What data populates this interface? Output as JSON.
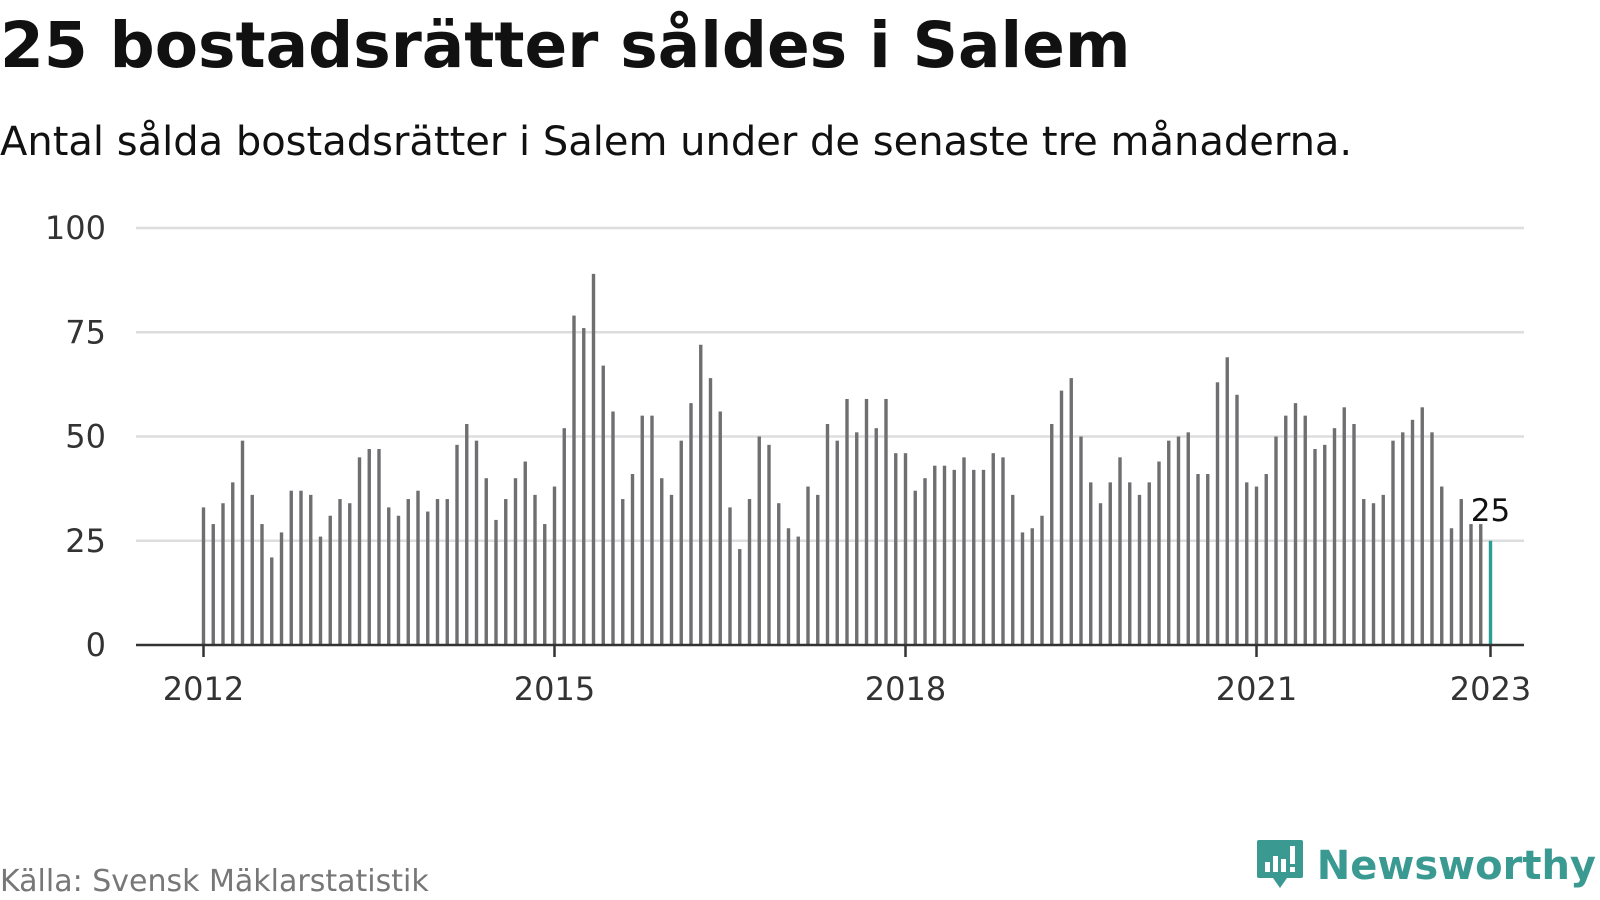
{
  "title": "25 bostadsrätter såldes i Salem",
  "subtitle": "Antal sålda bostadsrätter i Salem under de senaste tre månaderna.",
  "source": "Källa: Svensk Mäklarstatistik",
  "brand": {
    "name": "Newsworthy",
    "icon": "newsworthy-logo-icon",
    "color": "#3a9a92"
  },
  "colors": {
    "bar": "#6f6f72",
    "highlight": "#2a9d96",
    "grid": "#dddddd",
    "axis": "#333333"
  },
  "chart_data": {
    "type": "bar",
    "title": "25 bostadsrätter såldes i Salem",
    "subtitle": "Antal sålda bostadsrätter i Salem under de senaste tre månaderna.",
    "xlabel": "",
    "ylabel": "",
    "x_start": "2012-01",
    "x_ticks": [
      "2012",
      "2015",
      "2018",
      "2021",
      "2023"
    ],
    "y_ticks": [
      0,
      25,
      50,
      75,
      100
    ],
    "ylim": [
      0,
      100
    ],
    "grid": true,
    "values": [
      33,
      29,
      34,
      39,
      49,
      36,
      29,
      21,
      27,
      37,
      37,
      36,
      26,
      31,
      35,
      34,
      45,
      47,
      47,
      33,
      31,
      35,
      37,
      32,
      35,
      35,
      48,
      53,
      49,
      40,
      30,
      35,
      40,
      44,
      36,
      29,
      38,
      52,
      79,
      76,
      89,
      67,
      56,
      35,
      41,
      55,
      55,
      40,
      36,
      49,
      58,
      72,
      64,
      56,
      33,
      23,
      35,
      50,
      48,
      34,
      28,
      26,
      38,
      36,
      53,
      49,
      59,
      51,
      59,
      52,
      59,
      46,
      46,
      37,
      40,
      43,
      43,
      42,
      45,
      42,
      42,
      46,
      45,
      36,
      27,
      28,
      31,
      53,
      61,
      64,
      50,
      39,
      34,
      39,
      45,
      39,
      36,
      39,
      44,
      49,
      50,
      51,
      41,
      41,
      63,
      69,
      60,
      39,
      38,
      41,
      50,
      55,
      58,
      55,
      47,
      48,
      52,
      57,
      53,
      35,
      34,
      36,
      49,
      51,
      54,
      57,
      51,
      38,
      28,
      35,
      29,
      29,
      25
    ],
    "highlight": {
      "index": 132,
      "label": "25"
    }
  }
}
